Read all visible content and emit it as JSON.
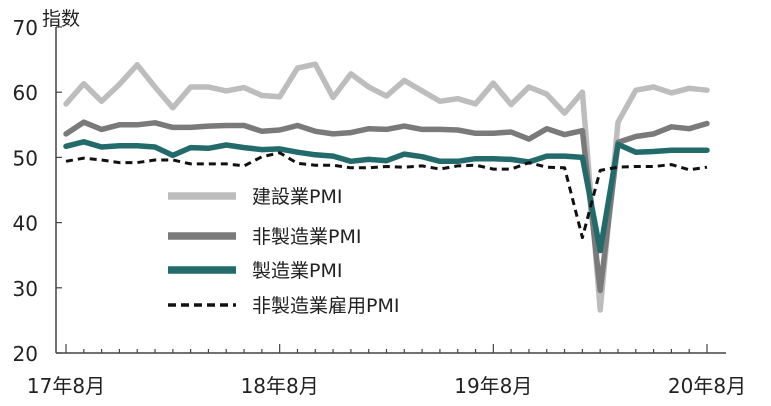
{
  "chart_data": {
    "type": "line",
    "title": "",
    "ylabel": "指数",
    "xlabel": "",
    "ylim": [
      20,
      70
    ],
    "yticks": [
      20,
      30,
      40,
      50,
      60,
      70
    ],
    "x_tick_labels": [
      "17年8月",
      "18年8月",
      "19年8月",
      "20年8月"
    ],
    "x_tick_indices": [
      0,
      12,
      24,
      36
    ],
    "grid": false,
    "legend_placement": "center-left",
    "series": [
      {
        "name": "建設業PMI",
        "color": "#bdbdbd",
        "dash": "solid",
        "values": [
          58.2,
          61.3,
          58.6,
          61.2,
          64.2,
          60.8,
          57.6,
          60.8,
          60.8,
          60.2,
          60.7,
          59.5,
          59.3,
          63.7,
          64.3,
          59.2,
          62.8,
          60.8,
          59.4,
          61.8,
          60.2,
          58.6,
          59.0,
          58.2,
          61.4,
          58.1,
          60.8,
          59.7,
          56.8,
          60.0,
          26.6,
          55.4,
          60.3,
          60.8,
          59.9,
          60.6,
          60.3
        ]
      },
      {
        "name": "非製造業PMI",
        "color": "#7a7a7a",
        "dash": "solid",
        "values": [
          53.6,
          55.4,
          54.3,
          55.0,
          55.0,
          55.3,
          54.6,
          54.6,
          54.8,
          54.9,
          54.9,
          54.0,
          54.2,
          54.9,
          54.0,
          53.6,
          53.8,
          54.4,
          54.3,
          54.8,
          54.3,
          54.3,
          54.2,
          53.7,
          53.7,
          53.9,
          52.8,
          54.4,
          53.5,
          54.1,
          29.6,
          52.3,
          53.2,
          53.6,
          54.7,
          54.4,
          55.2
        ]
      },
      {
        "name": "製造業PMI",
        "color": "#236b6b",
        "dash": "solid",
        "values": [
          51.7,
          52.4,
          51.6,
          51.8,
          51.8,
          51.6,
          50.3,
          51.5,
          51.4,
          51.9,
          51.5,
          51.2,
          51.3,
          50.8,
          50.4,
          50.2,
          49.4,
          49.7,
          49.5,
          50.5,
          50.1,
          49.4,
          49.4,
          49.8,
          49.8,
          49.7,
          49.3,
          50.2,
          50.2,
          50.0,
          35.7,
          52.0,
          50.8,
          50.9,
          51.1,
          51.1,
          51.1
        ]
      },
      {
        "name": "非製造業雇用PMI",
        "color": "#111111",
        "dash": "dashed",
        "values": [
          49.4,
          49.9,
          49.6,
          49.2,
          49.2,
          49.6,
          49.6,
          49.0,
          49.0,
          49.0,
          48.7,
          50.1,
          50.7,
          49.1,
          48.8,
          48.8,
          48.4,
          48.4,
          48.6,
          48.5,
          48.7,
          48.2,
          48.7,
          48.8,
          48.2,
          48.2,
          49.2,
          48.5,
          48.4,
          37.7,
          48.0,
          48.5,
          48.6,
          48.6,
          48.9,
          48.1,
          48.5
        ]
      }
    ]
  }
}
